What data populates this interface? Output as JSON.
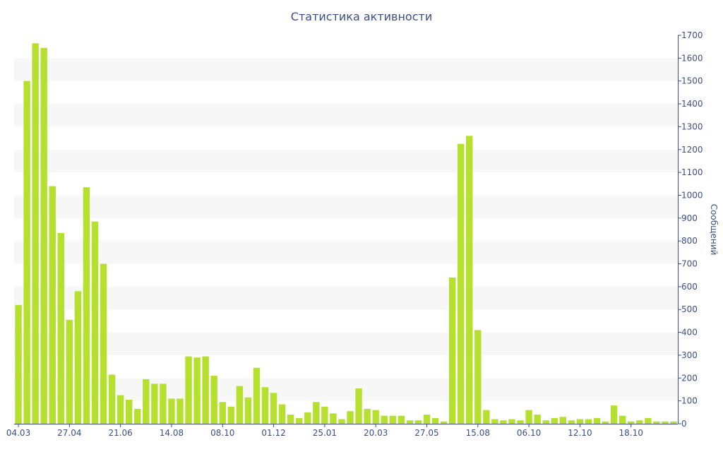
{
  "chart_data": {
    "type": "bar",
    "title": "Статистика активности",
    "ylabel": "Сообщений",
    "xlabel": "",
    "ylim": [
      0,
      1700
    ],
    "y_ticks": [
      0,
      100,
      200,
      300,
      400,
      500,
      600,
      700,
      800,
      900,
      1000,
      1100,
      1200,
      1300,
      1400,
      1500,
      1600,
      1700
    ],
    "y_axis_position": "right",
    "grid": "alternating horizontal bands",
    "x_tick_labels": [
      {
        "label": "04.03",
        "index": 0
      },
      {
        "label": "27.04",
        "index": 6
      },
      {
        "label": "21.06",
        "index": 12
      },
      {
        "label": "14.08",
        "index": 18
      },
      {
        "label": "08.10",
        "index": 24
      },
      {
        "label": "01.12",
        "index": 30
      },
      {
        "label": "25.01",
        "index": 36
      },
      {
        "label": "20.03",
        "index": 42
      },
      {
        "label": "27.05",
        "index": 48
      },
      {
        "label": "15.08",
        "index": 54
      },
      {
        "label": "06.10",
        "index": 60
      },
      {
        "label": "12.10",
        "index": 66
      },
      {
        "label": "18.10",
        "index": 72
      }
    ],
    "values": [
      520,
      1500,
      1665,
      1645,
      1040,
      835,
      455,
      580,
      1035,
      885,
      700,
      215,
      125,
      105,
      65,
      195,
      175,
      175,
      110,
      110,
      295,
      290,
      295,
      210,
      95,
      75,
      165,
      115,
      245,
      160,
      135,
      85,
      40,
      25,
      50,
      95,
      75,
      45,
      20,
      55,
      155,
      65,
      60,
      35,
      35,
      35,
      15,
      15,
      40,
      25,
      10,
      640,
      1225,
      1260,
      410,
      60,
      20,
      15,
      20,
      15,
      60,
      40,
      15,
      25,
      30,
      15,
      20,
      20,
      25,
      10,
      80,
      35,
      10,
      15,
      25,
      10,
      10,
      10
    ],
    "colors": {
      "bar": "#b5e02d",
      "text": "#3c4f86",
      "band": "#f7f7f7",
      "axis": "#3c4f86"
    }
  }
}
